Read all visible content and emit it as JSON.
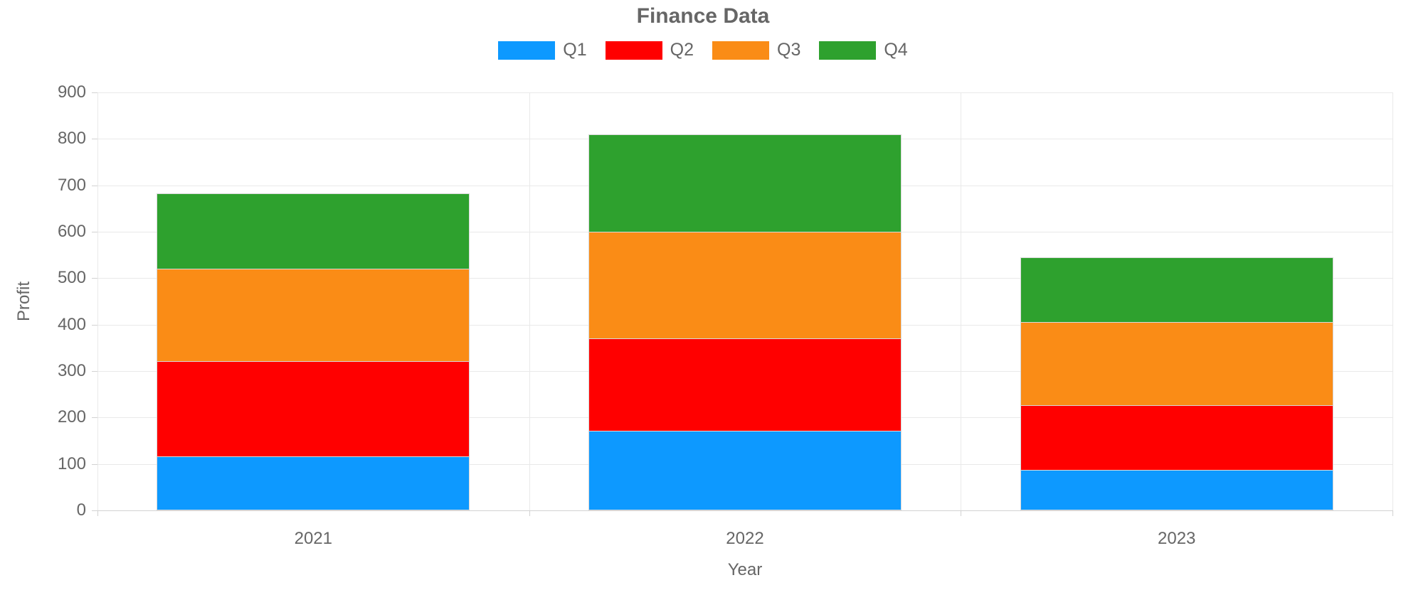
{
  "chart_data": {
    "type": "bar",
    "stacked": true,
    "title": "Finance Data",
    "xlabel": "Year",
    "ylabel": "Profit",
    "categories": [
      "2021",
      "2022",
      "2023"
    ],
    "series": [
      {
        "name": "Q1",
        "color": "#0d99ff",
        "values": [
          115,
          170,
          85
        ]
      },
      {
        "name": "Q2",
        "color": "#ff0000",
        "values": [
          205,
          200,
          140
        ]
      },
      {
        "name": "Q3",
        "color": "#fa8c16",
        "values": [
          200,
          230,
          180
        ]
      },
      {
        "name": "Q4",
        "color": "#2ea12e",
        "values": [
          163,
          210,
          140
        ]
      }
    ],
    "stack_totals": [
      683,
      810,
      545
    ],
    "ylim": [
      0,
      900
    ],
    "yticks": [
      0,
      100,
      200,
      300,
      400,
      500,
      600,
      700,
      800,
      900
    ],
    "grid": true,
    "legend_position": "top"
  },
  "colors": {
    "background": "#ffffff",
    "text": "#666666",
    "grid": "#e9e9e9",
    "axis_line": "#d2d2d2",
    "bar_border": "#d9d9d9"
  }
}
